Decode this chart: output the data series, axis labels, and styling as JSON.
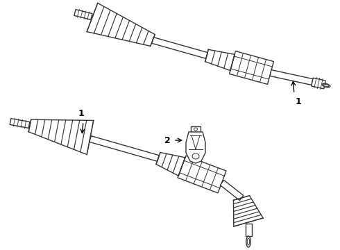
{
  "background_color": "#ffffff",
  "line_color": "#333333",
  "line_width": 1.0,
  "label1_text": "1",
  "label2_text": "2",
  "figsize": [
    4.9,
    3.6
  ],
  "dpi": 100
}
